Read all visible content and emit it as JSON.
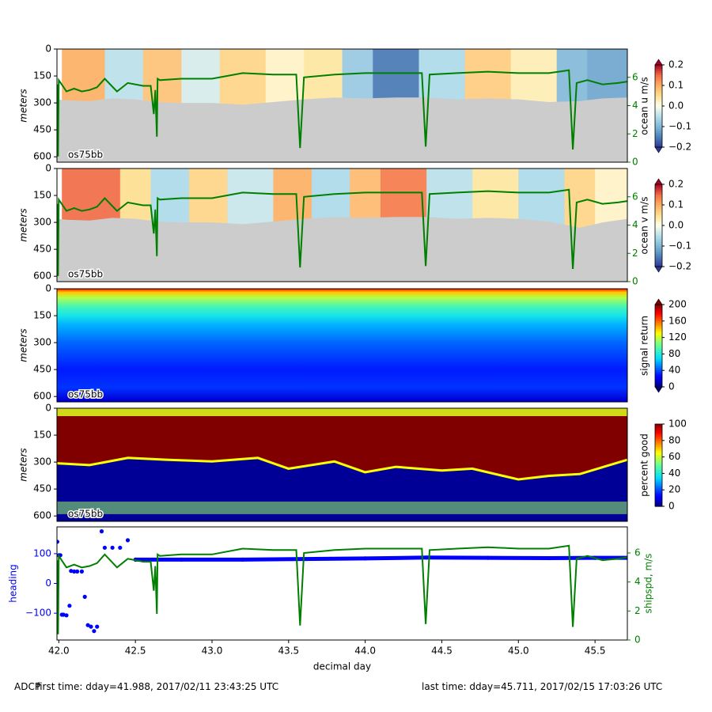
{
  "footer": {
    "left_tag": "ADCP",
    "first_time": "first time: dday=41.988,  2017/02/11 23:43:25 UTC",
    "last_time": "last time: dday=45.711,  2017/02/15 17:03:26 UTC"
  },
  "colors": {
    "bottom_fill": "#cccccc",
    "shipspd": "#008000",
    "heading": "#0000ff"
  },
  "chart_data": [
    {
      "type": "heatmap",
      "title": "",
      "xlabel": "",
      "ylabel": "meters",
      "yticks": [
        0,
        150,
        300,
        450,
        600
      ],
      "ylim": [
        630,
        0
      ],
      "xlim": [
        41.988,
        45.711
      ],
      "inset_label": "os75bb",
      "colorbar": {
        "label": "ocean u m/s",
        "ticks": [
          0.2,
          0.1,
          0.0,
          -0.1,
          -0.2
        ],
        "tick_labels": [
          "0.2",
          "0.1",
          "0.0",
          "−0.1",
          "−0.2"
        ],
        "range": [
          -0.2,
          0.2
        ],
        "colormap": "RdYlBu_r",
        "extend": "both"
      },
      "right_axis": {
        "label": "",
        "ticks": [
          0,
          2,
          4,
          6
        ],
        "range": [
          0,
          8
        ],
        "color": "#008000"
      },
      "ocean_blocks": [
        {
          "x": [
            42.02,
            42.3
          ],
          "value": 0.1
        },
        {
          "x": [
            42.3,
            42.55
          ],
          "value": -0.05
        },
        {
          "x": [
            42.55,
            42.8
          ],
          "value": 0.08
        },
        {
          "x": [
            42.8,
            43.05
          ],
          "value": -0.03
        },
        {
          "x": [
            43.05,
            43.35
          ],
          "value": 0.06
        },
        {
          "x": [
            43.35,
            43.6
          ],
          "value": 0.02
        },
        {
          "x": [
            43.6,
            43.85
          ],
          "value": 0.04
        },
        {
          "x": [
            43.85,
            44.05
          ],
          "value": -0.08
        },
        {
          "x": [
            44.05,
            44.35
          ],
          "value": -0.16
        },
        {
          "x": [
            44.35,
            44.65
          ],
          "value": -0.06
        },
        {
          "x": [
            44.65,
            44.95
          ],
          "value": 0.07
        },
        {
          "x": [
            44.95,
            45.25
          ],
          "value": 0.03
        },
        {
          "x": [
            45.25,
            45.45
          ],
          "value": -0.1
        },
        {
          "x": [
            45.45,
            45.711
          ],
          "value": -0.12
        }
      ],
      "bottom_depth": {
        "x": [
          41.99,
          42.05,
          42.2,
          42.35,
          42.5,
          42.65,
          42.8,
          43.0,
          43.2,
          43.4,
          43.6,
          43.8,
          44.0,
          44.2,
          44.4,
          44.6,
          44.8,
          45.0,
          45.2,
          45.4,
          45.55,
          45.711
        ],
        "y": [
          280,
          285,
          290,
          275,
          280,
          295,
          300,
          300,
          310,
          295,
          280,
          270,
          275,
          270,
          270,
          280,
          275,
          280,
          295,
          290,
          275,
          270
        ]
      }
    },
    {
      "type": "heatmap",
      "title": "",
      "xlabel": "",
      "ylabel": "meters",
      "yticks": [
        0,
        150,
        300,
        450,
        600
      ],
      "ylim": [
        630,
        0
      ],
      "xlim": [
        41.988,
        45.711
      ],
      "inset_label": "os75bb",
      "colorbar": {
        "label": "ocean v m/s",
        "ticks": [
          0.2,
          0.1,
          0.0,
          -0.1,
          -0.2
        ],
        "tick_labels": [
          "0.2",
          "0.1",
          "0.0",
          "−0.1",
          "−0.2"
        ],
        "range": [
          -0.2,
          0.2
        ],
        "colormap": "RdYlBu_r",
        "extend": "both"
      },
      "right_axis": {
        "label": "",
        "ticks": [
          0,
          2,
          4,
          6
        ],
        "range": [
          0,
          8
        ],
        "color": "#008000"
      },
      "ocean_blocks": [
        {
          "x": [
            42.02,
            42.4
          ],
          "value": 0.15
        },
        {
          "x": [
            42.4,
            42.6
          ],
          "value": 0.05
        },
        {
          "x": [
            42.6,
            42.85
          ],
          "value": -0.06
        },
        {
          "x": [
            42.85,
            43.1
          ],
          "value": 0.06
        },
        {
          "x": [
            43.1,
            43.4
          ],
          "value": -0.04
        },
        {
          "x": [
            43.4,
            43.65
          ],
          "value": 0.1
        },
        {
          "x": [
            43.65,
            43.9
          ],
          "value": -0.06
        },
        {
          "x": [
            43.9,
            44.1
          ],
          "value": 0.09
        },
        {
          "x": [
            44.1,
            44.4
          ],
          "value": 0.14
        },
        {
          "x": [
            44.4,
            44.7
          ],
          "value": -0.05
        },
        {
          "x": [
            44.7,
            45.0
          ],
          "value": 0.04
        },
        {
          "x": [
            45.0,
            45.3
          ],
          "value": -0.06
        },
        {
          "x": [
            45.3,
            45.5
          ],
          "value": 0.06
        },
        {
          "x": [
            45.5,
            45.711
          ],
          "value": 0.02
        }
      ],
      "bottom_depth": {
        "x": [
          41.99,
          42.05,
          42.2,
          42.35,
          42.5,
          42.65,
          42.8,
          43.0,
          43.2,
          43.4,
          43.6,
          43.8,
          44.0,
          44.2,
          44.4,
          44.6,
          44.8,
          45.0,
          45.2,
          45.4,
          45.55,
          45.711
        ],
        "y": [
          280,
          285,
          290,
          275,
          280,
          295,
          300,
          300,
          310,
          295,
          280,
          270,
          275,
          270,
          270,
          280,
          275,
          280,
          295,
          330,
          300,
          280
        ]
      }
    },
    {
      "type": "heatmap",
      "title": "",
      "xlabel": "",
      "ylabel": "meters",
      "yticks": [
        0,
        150,
        300,
        450,
        600
      ],
      "ylim": [
        630,
        0
      ],
      "xlim": [
        41.988,
        45.711
      ],
      "inset_label": "os75bb",
      "colorbar": {
        "label": "signal return",
        "ticks": [
          200,
          160,
          120,
          80,
          40,
          0
        ],
        "tick_labels": [
          "200",
          "160",
          "120",
          "80",
          "40",
          "0"
        ],
        "range": [
          0,
          200
        ],
        "colormap": "jet",
        "extend": "both"
      },
      "depth_profile": {
        "depth": [
          0,
          20,
          50,
          100,
          150,
          200,
          300,
          450,
          550,
          620
        ],
        "value": [
          175,
          140,
          115,
          90,
          75,
          60,
          45,
          30,
          35,
          15
        ]
      }
    },
    {
      "type": "heatmap",
      "title": "",
      "xlabel": "",
      "ylabel": "meters",
      "yticks": [
        0,
        150,
        300,
        450,
        600
      ],
      "ylim": [
        630,
        0
      ],
      "xlim": [
        41.988,
        45.711
      ],
      "inset_label": "os75bb",
      "colorbar": {
        "label": "percent good",
        "ticks": [
          100,
          80,
          60,
          40,
          20,
          0
        ],
        "tick_labels": [
          "100",
          "80",
          "60",
          "40",
          "20",
          "0"
        ],
        "range": [
          0,
          100
        ],
        "colormap": "jet",
        "extend": "none"
      },
      "good_depth": {
        "x": [
          41.99,
          42.2,
          42.45,
          42.7,
          43.0,
          43.3,
          43.5,
          43.8,
          44.0,
          44.2,
          44.5,
          44.7,
          45.0,
          45.2,
          45.4,
          45.711
        ],
        "y": [
          300,
          310,
          270,
          280,
          290,
          270,
          330,
          290,
          350,
          320,
          340,
          330,
          390,
          370,
          360,
          280
        ]
      }
    },
    {
      "type": "line",
      "title": "",
      "xlabel": "decimal day",
      "ylabel": "heading",
      "xlim": [
        41.988,
        45.711
      ],
      "xticks": [
        42.0,
        42.5,
        43.0,
        43.5,
        44.0,
        44.5,
        45.0,
        45.5
      ],
      "yticks": [
        -100,
        0,
        100
      ],
      "ylim": [
        -190,
        190
      ],
      "y2label": "shipspd, m/s",
      "y2ticks": [
        0,
        2,
        4,
        6
      ],
      "y2lim": [
        0,
        7.8
      ],
      "series": [
        {
          "name": "heading",
          "axis": "left",
          "x": [
            41.99,
            42.0,
            42.01,
            42.02,
            42.03,
            42.05,
            42.07,
            42.08,
            42.1,
            42.12,
            42.15,
            42.17,
            42.19,
            42.21,
            42.23,
            42.25,
            42.28,
            42.3,
            42.35,
            42.4,
            42.45,
            42.5,
            42.8,
            43.2,
            43.6,
            44.0,
            44.4,
            44.8,
            45.2,
            45.5,
            45.711
          ],
          "y": [
            140,
            95,
            95,
            -105,
            -105,
            -107,
            -75,
            42,
            40,
            40,
            40,
            -45,
            -140,
            -145,
            -160,
            -145,
            175,
            120,
            120,
            120,
            145,
            80,
            80,
            80,
            82,
            84,
            87,
            86,
            85,
            86,
            86
          ]
        },
        {
          "name": "shipspd, m/s",
          "axis": "right",
          "x": [
            41.99,
            41.995,
            42.0,
            42.05,
            42.1,
            42.15,
            42.2,
            42.25,
            42.3,
            42.38,
            42.45,
            42.55,
            42.6,
            42.62,
            42.63,
            42.64,
            42.645,
            42.66,
            42.8,
            43.0,
            43.2,
            43.4,
            43.55,
            43.575,
            43.6,
            43.8,
            44.0,
            44.2,
            44.37,
            44.395,
            44.42,
            44.6,
            44.8,
            45.0,
            45.2,
            45.33,
            45.355,
            45.38,
            45.45,
            45.55,
            45.65,
            45.711
          ],
          "y": [
            5.5,
            0.4,
            5.8,
            5.0,
            5.2,
            5.0,
            5.1,
            5.3,
            5.9,
            5.0,
            5.6,
            5.4,
            5.4,
            3.4,
            5.1,
            1.8,
            5.9,
            5.8,
            5.9,
            5.9,
            6.3,
            6.2,
            6.2,
            1.0,
            6.0,
            6.2,
            6.3,
            6.3,
            6.3,
            1.1,
            6.2,
            6.3,
            6.4,
            6.3,
            6.3,
            6.5,
            0.9,
            5.6,
            5.8,
            5.5,
            5.6,
            5.7
          ]
        }
      ]
    }
  ]
}
